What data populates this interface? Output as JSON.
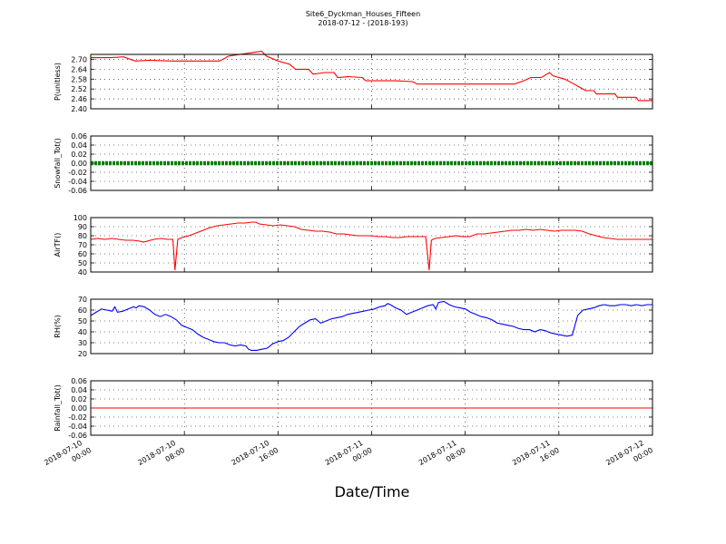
{
  "chart_data": {
    "type": "line",
    "title": "Site6_Dyckman_Houses_Fifteen",
    "subtitle": "2018-07-12 - (2018-193)",
    "xlabel": "Date/Time",
    "x_range": [
      "2018-07-10 00:00",
      "2018-07-12 00:00"
    ],
    "x_ticks": [
      {
        "line1": "2018-07-10",
        "line2": "00:00"
      },
      {
        "line1": "2018-07-10",
        "line2": "08:00"
      },
      {
        "line1": "2018-07-10",
        "line2": "16:00"
      },
      {
        "line1": "2018-07-11",
        "line2": "00:00"
      },
      {
        "line1": "2018-07-11",
        "line2": "08:00"
      },
      {
        "line1": "2018-07-11",
        "line2": "16:00"
      },
      {
        "line1": "2018-07-12",
        "line2": "00:00"
      }
    ],
    "grid": true,
    "panels": [
      {
        "ylabel": "P(unitless)",
        "ylim": [
          2.4,
          2.73
        ],
        "yticks": [
          "2.40",
          "2.46",
          "2.52",
          "2.58",
          "2.64",
          "2.70"
        ],
        "color": "#ff0000",
        "style": "step-line",
        "points": [
          [
            0,
            2.71
          ],
          [
            1.7,
            2.71
          ],
          [
            2.8,
            2.715
          ],
          [
            3.8,
            2.69
          ],
          [
            5,
            2.695
          ],
          [
            7,
            2.69
          ],
          [
            8.4,
            2.69
          ],
          [
            10,
            2.69
          ],
          [
            11,
            2.69
          ],
          [
            11.8,
            2.72
          ],
          [
            14.6,
            2.75
          ],
          [
            15,
            2.72
          ],
          [
            16,
            2.69
          ],
          [
            17,
            2.67
          ],
          [
            17.5,
            2.64
          ],
          [
            18.6,
            2.64
          ],
          [
            19,
            2.61
          ],
          [
            20,
            2.62
          ],
          [
            20.8,
            2.62
          ],
          [
            21.1,
            2.59
          ],
          [
            22,
            2.595
          ],
          [
            23.2,
            2.59
          ],
          [
            23.5,
            2.57
          ],
          [
            25,
            2.57
          ],
          [
            26,
            2.57
          ],
          [
            27.5,
            2.565
          ],
          [
            27.9,
            2.55
          ],
          [
            30,
            2.55
          ],
          [
            33,
            2.55
          ],
          [
            35,
            2.55
          ],
          [
            36.2,
            2.55
          ],
          [
            37,
            2.57
          ],
          [
            37.6,
            2.59
          ],
          [
            38.5,
            2.59
          ],
          [
            39.2,
            2.62
          ],
          [
            39.5,
            2.6
          ],
          [
            40.5,
            2.58
          ],
          [
            41.3,
            2.55
          ],
          [
            41.8,
            2.53
          ],
          [
            42.3,
            2.51
          ],
          [
            43,
            2.51
          ],
          [
            43.2,
            2.49
          ],
          [
            44,
            2.49
          ],
          [
            44.8,
            2.49
          ],
          [
            45,
            2.47
          ],
          [
            46,
            2.47
          ],
          [
            46.6,
            2.47
          ],
          [
            46.8,
            2.45
          ],
          [
            47.5,
            2.45
          ],
          [
            48,
            2.45
          ]
        ]
      },
      {
        "ylabel": "Snowfall_Tot()",
        "ylim": [
          -0.06,
          0.06
        ],
        "yticks": [
          "-0.06",
          "-0.04",
          "-0.02",
          "0.00",
          "0.02",
          "0.04",
          "0.06"
        ],
        "color": "#008000",
        "style": "dots",
        "points": [
          [
            0,
            0.0
          ],
          [
            48,
            0.0
          ]
        ]
      },
      {
        "ylabel": "AirTF()",
        "ylim": [
          40,
          100
        ],
        "yticks": [
          "40",
          "50",
          "60",
          "70",
          "80",
          "90",
          "100"
        ],
        "color": "#ff0000",
        "style": "line",
        "points": [
          [
            0,
            76
          ],
          [
            1,
            77
          ],
          [
            2,
            76
          ],
          [
            3,
            77
          ],
          [
            4,
            76
          ],
          [
            5,
            75
          ],
          [
            6,
            75
          ],
          [
            7,
            74
          ],
          [
            7.5,
            73
          ],
          [
            8.5,
            75
          ],
          [
            9,
            76
          ],
          [
            10,
            77
          ],
          [
            11,
            76
          ],
          [
            11.7,
            76
          ],
          [
            12,
            42
          ],
          [
            12.4,
            76
          ],
          [
            13,
            78
          ],
          [
            14,
            80
          ],
          [
            15,
            83
          ],
          [
            16,
            86
          ],
          [
            17,
            89
          ],
          [
            18,
            91
          ],
          [
            19,
            92
          ],
          [
            20,
            93
          ],
          [
            21,
            94
          ],
          [
            22,
            94
          ],
          [
            23,
            95
          ],
          [
            23.5,
            95
          ],
          [
            24,
            93
          ],
          [
            25,
            92
          ],
          [
            26,
            91
          ],
          [
            27,
            92
          ],
          [
            28,
            91
          ],
          [
            29,
            90
          ],
          [
            30,
            87
          ],
          [
            31,
            86
          ],
          [
            32,
            85
          ],
          [
            33,
            85
          ],
          [
            34,
            84
          ],
          [
            35,
            82
          ],
          [
            36,
            82
          ],
          [
            37,
            81
          ],
          [
            38,
            80
          ],
          [
            39,
            80
          ],
          [
            40,
            80
          ],
          [
            41,
            79
          ],
          [
            42,
            79
          ],
          [
            43,
            78
          ],
          [
            44,
            78
          ],
          [
            45,
            79
          ],
          [
            47,
            79
          ],
          [
            47.7,
            79
          ],
          [
            48.2,
            42
          ],
          [
            48.5,
            75
          ],
          [
            49,
            77
          ],
          [
            50,
            78
          ],
          [
            51,
            79
          ],
          [
            52,
            80
          ],
          [
            53,
            79
          ],
          [
            54,
            79
          ],
          [
            55,
            82
          ],
          [
            56,
            82
          ],
          [
            57,
            83
          ],
          [
            58,
            84
          ],
          [
            59,
            85
          ],
          [
            60,
            86
          ],
          [
            61,
            86
          ],
          [
            62,
            87
          ],
          [
            63,
            86
          ],
          [
            64,
            87
          ],
          [
            65,
            86
          ],
          [
            66,
            85
          ],
          [
            67,
            86
          ],
          [
            68,
            86
          ],
          [
            69,
            86
          ],
          [
            70,
            85
          ],
          [
            71,
            82
          ],
          [
            72,
            80
          ],
          [
            73,
            78
          ],
          [
            74,
            77
          ],
          [
            75,
            76
          ],
          [
            76,
            76
          ],
          [
            77,
            76
          ],
          [
            78,
            76
          ],
          [
            79,
            76
          ],
          [
            80,
            76
          ]
        ]
      },
      {
        "ylabel": "RH(%)",
        "ylim": [
          20,
          70
        ],
        "yticks": [
          "20",
          "30",
          "40",
          "50",
          "60",
          "70"
        ],
        "color": "#0000ff",
        "style": "line",
        "points": [
          [
            0,
            55
          ],
          [
            1,
            58
          ],
          [
            2,
            61
          ],
          [
            3,
            60
          ],
          [
            4,
            59
          ],
          [
            4.5,
            63
          ],
          [
            5,
            58
          ],
          [
            6,
            59
          ],
          [
            7,
            61
          ],
          [
            8,
            63
          ],
          [
            8.5,
            62
          ],
          [
            9,
            64
          ],
          [
            10,
            63
          ],
          [
            11,
            60
          ],
          [
            12,
            56
          ],
          [
            13,
            54
          ],
          [
            14,
            56
          ],
          [
            15,
            54
          ],
          [
            16,
            51
          ],
          [
            17,
            46
          ],
          [
            18,
            44
          ],
          [
            19,
            42
          ],
          [
            20,
            38
          ],
          [
            21,
            35
          ],
          [
            22,
            33
          ],
          [
            23,
            31
          ],
          [
            24,
            30
          ],
          [
            25,
            30
          ],
          [
            26,
            28
          ],
          [
            27,
            27
          ],
          [
            28,
            28
          ],
          [
            29,
            27
          ],
          [
            29.5,
            24
          ],
          [
            30,
            23
          ],
          [
            31,
            23
          ],
          [
            32,
            24
          ],
          [
            33,
            25
          ],
          [
            34,
            29
          ],
          [
            35,
            31
          ],
          [
            36,
            32
          ],
          [
            37,
            35
          ],
          [
            38,
            40
          ],
          [
            39,
            45
          ],
          [
            40,
            48
          ],
          [
            41,
            51
          ],
          [
            42,
            52
          ],
          [
            43,
            48
          ],
          [
            44,
            50
          ],
          [
            45,
            52
          ],
          [
            46,
            53
          ],
          [
            47,
            54
          ],
          [
            48,
            56
          ],
          [
            49,
            57
          ],
          [
            50,
            58
          ],
          [
            51,
            59
          ],
          [
            52,
            60
          ],
          [
            53,
            61
          ],
          [
            54,
            63
          ],
          [
            55,
            64
          ],
          [
            55.5,
            66
          ],
          [
            56,
            65
          ],
          [
            57,
            62
          ],
          [
            58,
            60
          ],
          [
            59,
            56
          ],
          [
            60,
            58
          ],
          [
            61,
            60
          ],
          [
            62,
            62
          ],
          [
            63,
            64
          ],
          [
            64,
            65
          ],
          [
            64.5,
            61
          ],
          [
            65,
            67
          ],
          [
            66,
            68
          ],
          [
            67,
            65
          ],
          [
            68,
            63
          ],
          [
            69,
            62
          ],
          [
            70,
            61
          ],
          [
            71,
            58
          ],
          [
            72,
            56
          ],
          [
            73,
            54
          ],
          [
            74,
            53
          ],
          [
            75,
            51
          ],
          [
            76,
            48
          ],
          [
            77,
            47
          ],
          [
            78,
            46
          ],
          [
            79,
            45
          ],
          [
            80,
            43
          ],
          [
            81,
            42
          ],
          [
            82,
            42
          ],
          [
            83,
            40
          ],
          [
            84,
            42
          ],
          [
            85,
            41
          ],
          [
            86,
            39
          ],
          [
            87,
            38
          ],
          [
            88,
            37
          ],
          [
            89,
            36
          ],
          [
            90,
            37
          ],
          [
            91,
            55
          ],
          [
            92,
            60
          ],
          [
            93,
            61
          ],
          [
            94,
            62
          ],
          [
            95,
            64
          ],
          [
            96,
            65
          ],
          [
            97,
            64
          ],
          [
            98,
            64
          ],
          [
            99,
            65
          ],
          [
            100,
            65
          ],
          [
            101,
            64
          ],
          [
            102,
            65
          ],
          [
            103,
            64
          ],
          [
            104,
            65
          ],
          [
            105,
            65
          ]
        ]
      },
      {
        "ylabel": "Rainfall_Tot()",
        "ylim": [
          -0.06,
          0.06
        ],
        "yticks": [
          "-0.06",
          "-0.04",
          "-0.02",
          "0.00",
          "0.02",
          "0.04",
          "0.06"
        ],
        "color": "#ff0000",
        "style": "line",
        "points": [
          [
            0,
            0.0
          ],
          [
            48,
            0.0
          ]
        ]
      }
    ]
  }
}
